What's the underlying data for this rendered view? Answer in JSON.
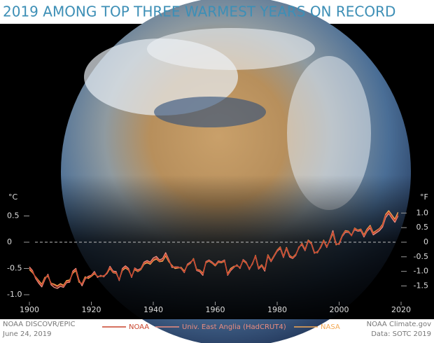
{
  "chart_data": {
    "type": "line",
    "title": "2019 AMONG TOP THREE WARMEST YEARS ON RECORD",
    "y_label": "°C",
    "y2_label": "°F",
    "credit": [
      "NOAA DISCOVR/EPIC",
      "June 24, 2019"
    ],
    "source": [
      "NOAA Climate.gov",
      "Data: SOTC 2019"
    ],
    "x": [
      1900,
      1901,
      1902,
      1903,
      1904,
      1905,
      1906,
      1907,
      1908,
      1909,
      1910,
      1911,
      1912,
      1913,
      1914,
      1915,
      1916,
      1917,
      1918,
      1919,
      1920,
      1921,
      1922,
      1923,
      1924,
      1925,
      1926,
      1927,
      1928,
      1929,
      1930,
      1931,
      1932,
      1933,
      1934,
      1935,
      1936,
      1937,
      1938,
      1939,
      1940,
      1941,
      1942,
      1943,
      1944,
      1945,
      1946,
      1947,
      1948,
      1949,
      1950,
      1951,
      1952,
      1953,
      1954,
      1955,
      1956,
      1957,
      1958,
      1959,
      1960,
      1961,
      1962,
      1963,
      1964,
      1965,
      1966,
      1967,
      1968,
      1969,
      1970,
      1971,
      1972,
      1973,
      1974,
      1975,
      1976,
      1977,
      1978,
      1979,
      1980,
      1981,
      1982,
      1983,
      1984,
      1985,
      1986,
      1987,
      1988,
      1989,
      1990,
      1991,
      1992,
      1993,
      1994,
      1995,
      1996,
      1997,
      1998,
      1999,
      2000,
      2001,
      2002,
      2003,
      2004,
      2005,
      2006,
      2007,
      2008,
      2009,
      2010,
      2011,
      2012,
      2013,
      2014,
      2015,
      2016,
      2017,
      2018,
      2019
    ],
    "series": [
      {
        "name": "NOAA",
        "color": "#c9442c",
        "values": [
          -0.49,
          -0.56,
          -0.67,
          -0.75,
          -0.82,
          -0.69,
          -0.63,
          -0.79,
          -0.82,
          -0.85,
          -0.81,
          -0.84,
          -0.75,
          -0.74,
          -0.57,
          -0.52,
          -0.74,
          -0.8,
          -0.68,
          -0.67,
          -0.64,
          -0.58,
          -0.66,
          -0.64,
          -0.65,
          -0.58,
          -0.48,
          -0.57,
          -0.58,
          -0.72,
          -0.52,
          -0.47,
          -0.52,
          -0.66,
          -0.5,
          -0.55,
          -0.51,
          -0.4,
          -0.37,
          -0.4,
          -0.33,
          -0.3,
          -0.36,
          -0.34,
          -0.23,
          -0.35,
          -0.46,
          -0.48,
          -0.48,
          -0.49,
          -0.57,
          -0.43,
          -0.39,
          -0.32,
          -0.53,
          -0.54,
          -0.61,
          -0.38,
          -0.35,
          -0.39,
          -0.44,
          -0.37,
          -0.38,
          -0.35,
          -0.62,
          -0.52,
          -0.47,
          -0.44,
          -0.49,
          -0.34,
          -0.39,
          -0.51,
          -0.41,
          -0.26,
          -0.5,
          -0.44,
          -0.53,
          -0.25,
          -0.36,
          -0.26,
          -0.16,
          -0.1,
          -0.28,
          -0.11,
          -0.26,
          -0.3,
          -0.24,
          -0.1,
          -0.03,
          -0.15,
          0.03,
          -0.02,
          -0.2,
          -0.19,
          -0.1,
          0.03,
          -0.09,
          0.04,
          0.19,
          -0.04,
          -0.03,
          0.12,
          0.21,
          0.2,
          0.12,
          0.26,
          0.22,
          0.24,
          0.12,
          0.23,
          0.3,
          0.16,
          0.21,
          0.25,
          0.32,
          0.51,
          0.57,
          0.49,
          0.41,
          0.53
        ]
      },
      {
        "name": "Univ. East Anglia (HadCRUT4)",
        "color": "#ec8d80",
        "values": [
          -0.47,
          -0.54,
          -0.69,
          -0.78,
          -0.85,
          -0.71,
          -0.61,
          -0.81,
          -0.86,
          -0.88,
          -0.84,
          -0.86,
          -0.77,
          -0.76,
          -0.55,
          -0.5,
          -0.72,
          -0.83,
          -0.7,
          -0.65,
          -0.63,
          -0.56,
          -0.67,
          -0.63,
          -0.66,
          -0.59,
          -0.46,
          -0.55,
          -0.56,
          -0.73,
          -0.5,
          -0.45,
          -0.5,
          -0.67,
          -0.49,
          -0.53,
          -0.5,
          -0.38,
          -0.35,
          -0.38,
          -0.3,
          -0.27,
          -0.34,
          -0.31,
          -0.2,
          -0.33,
          -0.48,
          -0.47,
          -0.47,
          -0.5,
          -0.58,
          -0.42,
          -0.38,
          -0.33,
          -0.54,
          -0.56,
          -0.63,
          -0.37,
          -0.34,
          -0.38,
          -0.43,
          -0.36,
          -0.37,
          -0.34,
          -0.63,
          -0.54,
          -0.48,
          -0.43,
          -0.5,
          -0.33,
          -0.38,
          -0.52,
          -0.4,
          -0.27,
          -0.51,
          -0.45,
          -0.55,
          -0.26,
          -0.37,
          -0.27,
          -0.17,
          -0.12,
          -0.29,
          -0.12,
          -0.28,
          -0.31,
          -0.25,
          -0.09,
          -0.05,
          -0.16,
          0.02,
          -0.03,
          -0.21,
          -0.18,
          -0.11,
          0.02,
          -0.1,
          0.05,
          0.22,
          -0.03,
          -0.04,
          0.11,
          0.19,
          0.19,
          0.13,
          0.24,
          0.21,
          0.22,
          0.1,
          0.21,
          0.27,
          0.14,
          0.18,
          0.22,
          0.29,
          0.47,
          0.55,
          0.46,
          0.38,
          0.5
        ]
      },
      {
        "name": "NASA",
        "color": "#f3a955",
        "values": [
          -0.52,
          -0.58,
          -0.66,
          -0.73,
          -0.8,
          -0.67,
          -0.65,
          -0.78,
          -0.8,
          -0.83,
          -0.79,
          -0.82,
          -0.73,
          -0.72,
          -0.59,
          -0.54,
          -0.76,
          -0.79,
          -0.66,
          -0.69,
          -0.65,
          -0.6,
          -0.65,
          -0.65,
          -0.64,
          -0.6,
          -0.5,
          -0.58,
          -0.59,
          -0.71,
          -0.54,
          -0.49,
          -0.53,
          -0.65,
          -0.52,
          -0.56,
          -0.52,
          -0.42,
          -0.39,
          -0.42,
          -0.35,
          -0.32,
          -0.37,
          -0.36,
          -0.26,
          -0.37,
          -0.44,
          -0.5,
          -0.49,
          -0.48,
          -0.55,
          -0.44,
          -0.4,
          -0.31,
          -0.52,
          -0.53,
          -0.59,
          -0.39,
          -0.36,
          -0.4,
          -0.45,
          -0.38,
          -0.39,
          -0.36,
          -0.6,
          -0.5,
          -0.46,
          -0.45,
          -0.48,
          -0.35,
          -0.4,
          -0.5,
          -0.42,
          -0.25,
          -0.49,
          -0.43,
          -0.52,
          -0.24,
          -0.35,
          -0.25,
          -0.15,
          -0.09,
          -0.27,
          -0.1,
          -0.25,
          -0.29,
          -0.23,
          -0.11,
          -0.02,
          -0.14,
          0.04,
          -0.01,
          -0.19,
          -0.2,
          -0.09,
          0.04,
          -0.08,
          0.03,
          0.17,
          -0.05,
          -0.02,
          0.13,
          0.22,
          0.21,
          0.13,
          0.27,
          0.23,
          0.25,
          0.14,
          0.25,
          0.32,
          0.18,
          0.22,
          0.26,
          0.34,
          0.53,
          0.6,
          0.52,
          0.44,
          0.57
        ]
      }
    ],
    "xlim": [
      1900,
      2020
    ],
    "xticks": [
      1900,
      1920,
      1940,
      1960,
      1980,
      2000,
      2020
    ],
    "ylim": [
      -1.1,
      1.0
    ],
    "yticks": [
      0.5,
      0,
      -0.5,
      {
        "value": -1.0,
        "label": "-1.0"
      }
    ],
    "y2lim": [
      -1.98,
      1.8
    ],
    "y2ticks": [
      {
        "value": 1.0,
        "label": "1.0"
      },
      0.5,
      0,
      -0.5,
      {
        "value": -1.0,
        "label": "-1.0"
      },
      -1.5
    ],
    "zero_line": true
  }
}
